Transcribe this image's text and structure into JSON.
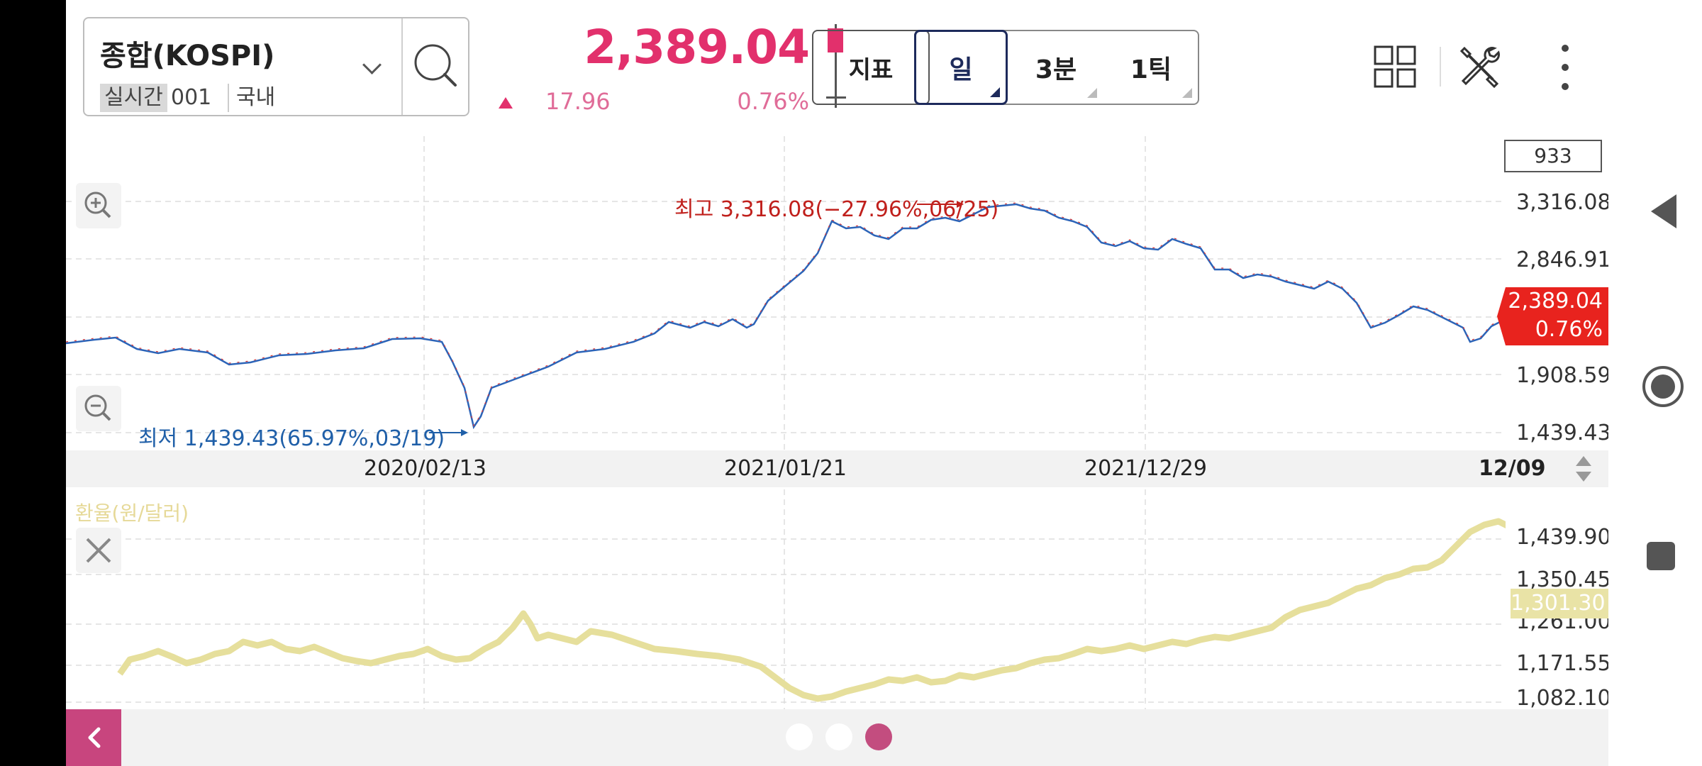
{
  "header": {
    "market_name": "종합(KOSPI)",
    "realtime_tag": "실시간",
    "code": "001",
    "region": "국내",
    "price": "2,389.04",
    "change": "17.96",
    "change_rate": "0.76%",
    "indicator_button": "지표",
    "periods": [
      {
        "label": "일",
        "active": true
      },
      {
        "label": "3분",
        "active": false
      },
      {
        "label": "1틱",
        "active": false
      }
    ],
    "icons": [
      "grid-icon",
      "tools-icon",
      "more-vertical-icon"
    ]
  },
  "main_chart": {
    "count": "933",
    "high_label": "최고 3,316.08(−27.96%,06/25)",
    "low_label": "최저 1,439.43(65.97%,03/19)",
    "y_labels": [
      "3,316.08",
      "2,846.91",
      "1,908.59",
      "1,439.43"
    ],
    "current_price": "2,389.04",
    "current_rate": "0.76%",
    "x_labels": [
      "2020/02/13",
      "2021/01/21",
      "2021/12/29",
      "12/09"
    ]
  },
  "sub_chart": {
    "title": "환율(원/달러)",
    "y_labels": [
      "1,439.90",
      "1,350.45",
      "1,261.00",
      "1,171.55",
      "1,082.10"
    ],
    "current_value": "1,301.30"
  },
  "pager": {
    "count": 3,
    "active_index": 2
  },
  "colors": {
    "accent": "#e2306c",
    "up_red": "#e8231e",
    "down_blue": "#1f5fa8",
    "fx_line": "#e6df9c",
    "pager_active": "#c34d7f"
  }
}
